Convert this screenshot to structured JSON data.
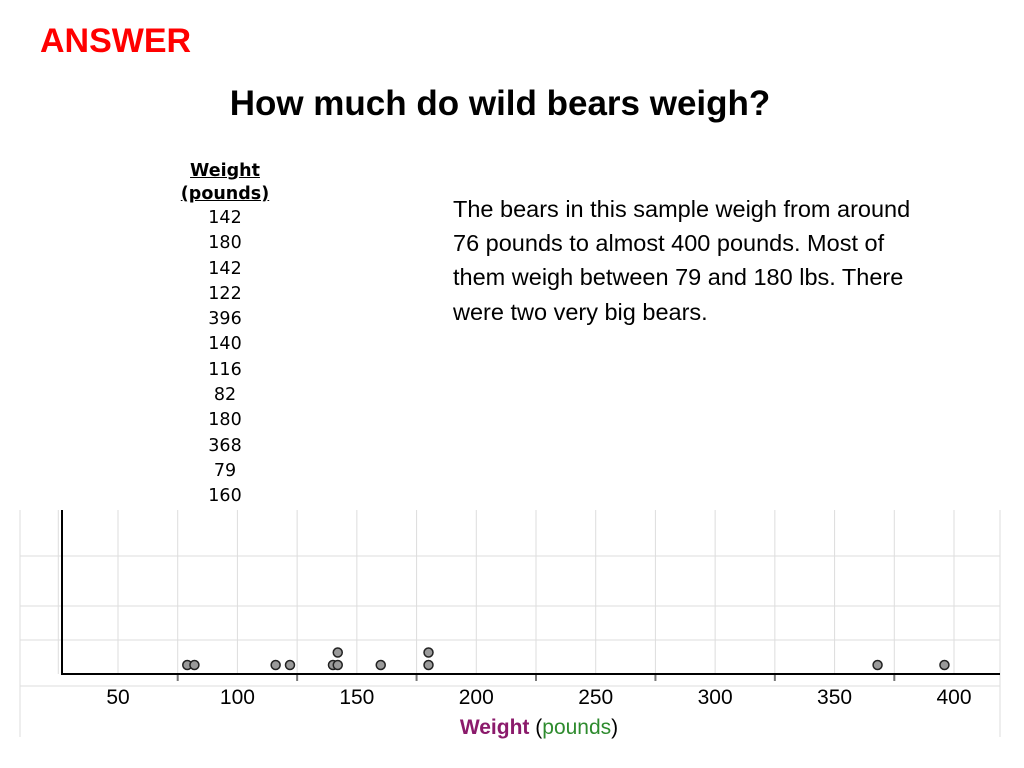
{
  "header": {
    "answer_label": "ANSWER",
    "title": "How much do wild bears weigh?"
  },
  "table": {
    "header_line1": "Weight",
    "header_line2": "(pounds)",
    "values": [
      "142",
      "180",
      "142",
      "122",
      "396",
      "140",
      "116",
      "82",
      "180",
      "368",
      "79",
      "160"
    ]
  },
  "summary": {
    "text": "The bears in this sample weigh from around 76 pounds to almost 400 pounds.  Most of them weigh between 79  and 180 lbs.  There were two very big bears."
  },
  "chart_data": {
    "type": "scatter",
    "subtype": "dot plot",
    "x_values": [
      79,
      82,
      116,
      122,
      140,
      142,
      142,
      160,
      180,
      180,
      368,
      396
    ],
    "xlim": [
      25,
      410
    ],
    "x_ticks": [
      50,
      100,
      150,
      200,
      250,
      300,
      350,
      400
    ],
    "x_tick_labels": [
      "50",
      "100",
      "150",
      "200",
      "250",
      "300",
      "350",
      "400"
    ],
    "xlabel_part1": "Weight",
    "xlabel_part2": "(",
    "xlabel_part3": "pounds",
    "xlabel_part4": ")",
    "grid": true,
    "colors": {
      "dot_fill": "#9a9a9a",
      "dot_stroke": "#222222",
      "grid": "#dddddd",
      "axis": "#000000",
      "xlabel_weight": "#8b1a6b",
      "xlabel_pounds": "#2e8b2e"
    }
  }
}
